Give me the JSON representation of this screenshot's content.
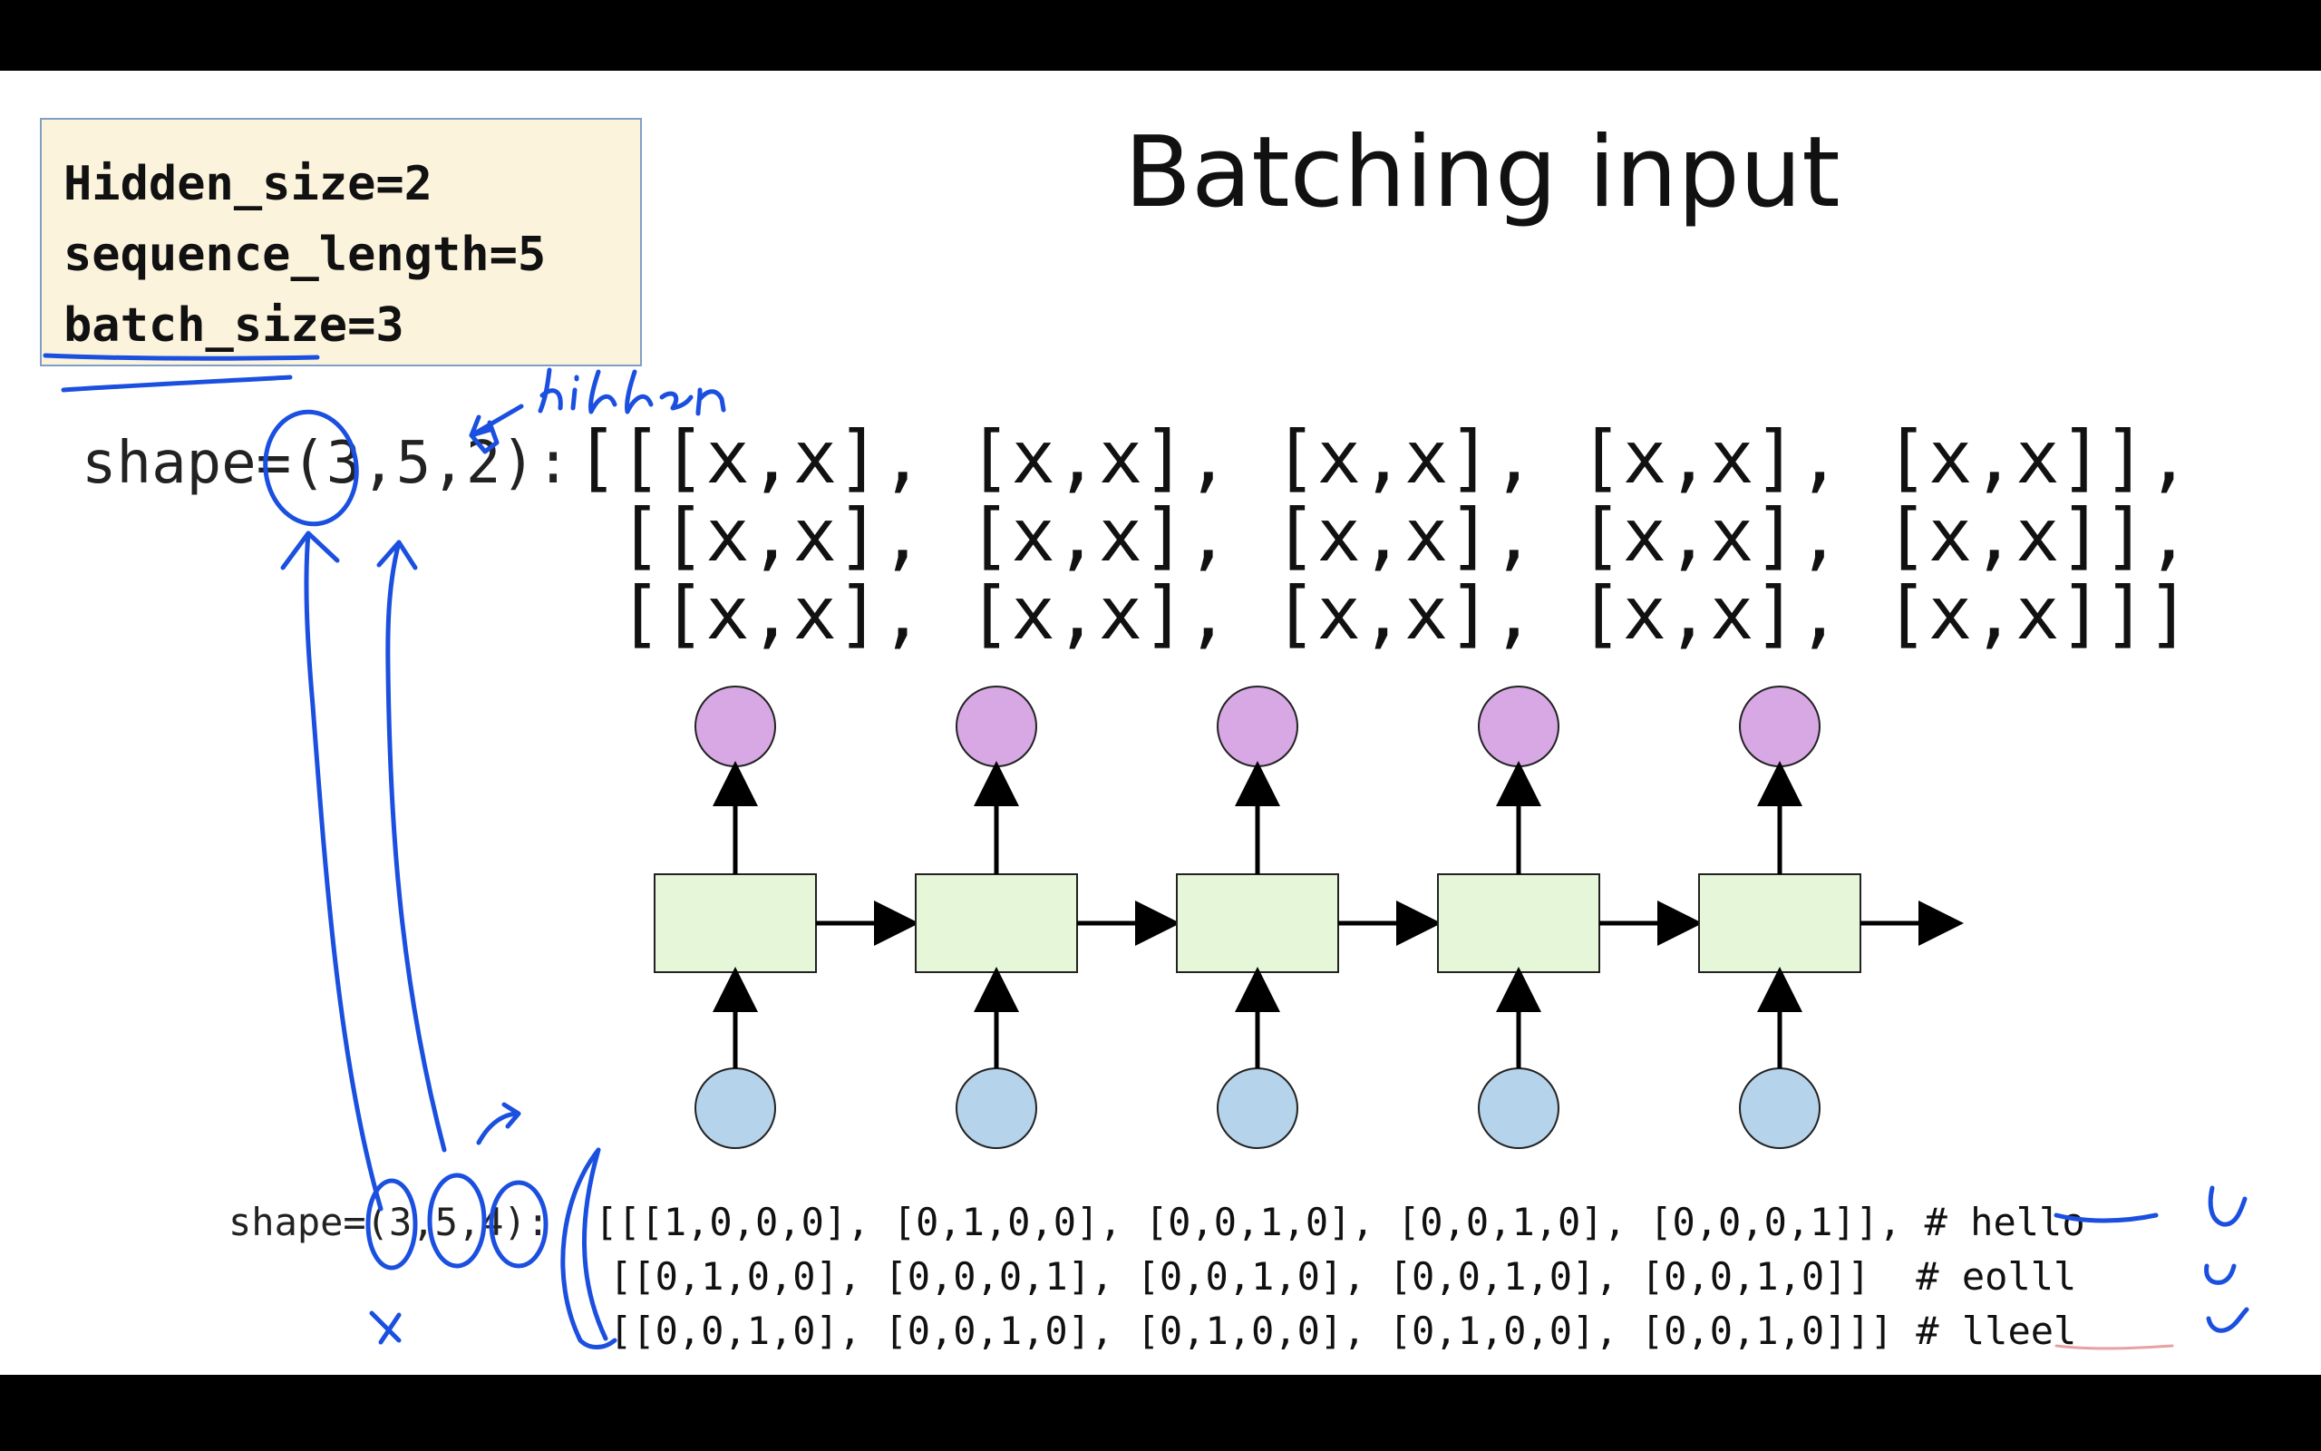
{
  "title": "Batching input",
  "params": {
    "hidden_size": "Hidden_size=2",
    "sequence_length": "sequence_length=5",
    "batch_size": "batch_size=3"
  },
  "hidden_block": {
    "label": "shape=(3,5,2):",
    "rows": [
      "[[[x,x], [x,x], [x,x], [x,x], [x,x]],",
      "[[x,x], [x,x], [x,x], [x,x], [x,x]],",
      "[[x,x], [x,x], [x,x], [x,x], [x,x]]]"
    ]
  },
  "input_block": {
    "label": "shape=(3,5,4):",
    "rows": [
      "[[[1,0,0,0], [0,1,0,0], [0,0,1,0], [0,0,1,0], [0,0,0,1]], # hello",
      "[[0,1,0,0], [0,0,0,1], [0,0,1,0], [0,0,1,0], [0,0,1,0]]  # eolll",
      "[[0,0,1,0], [0,0,1,0], [0,1,0,0], [0,1,0,0], [0,0,1,0]]] # lleel"
    ]
  },
  "annotation": {
    "handwritten": "hidden"
  },
  "rnn_diagram": {
    "cells": 5,
    "colors": {
      "output_node": "#d8a8e4",
      "input_node": "#b5d3ea",
      "cell": "#e6f7d9",
      "ink": "#1a4fe0"
    }
  }
}
